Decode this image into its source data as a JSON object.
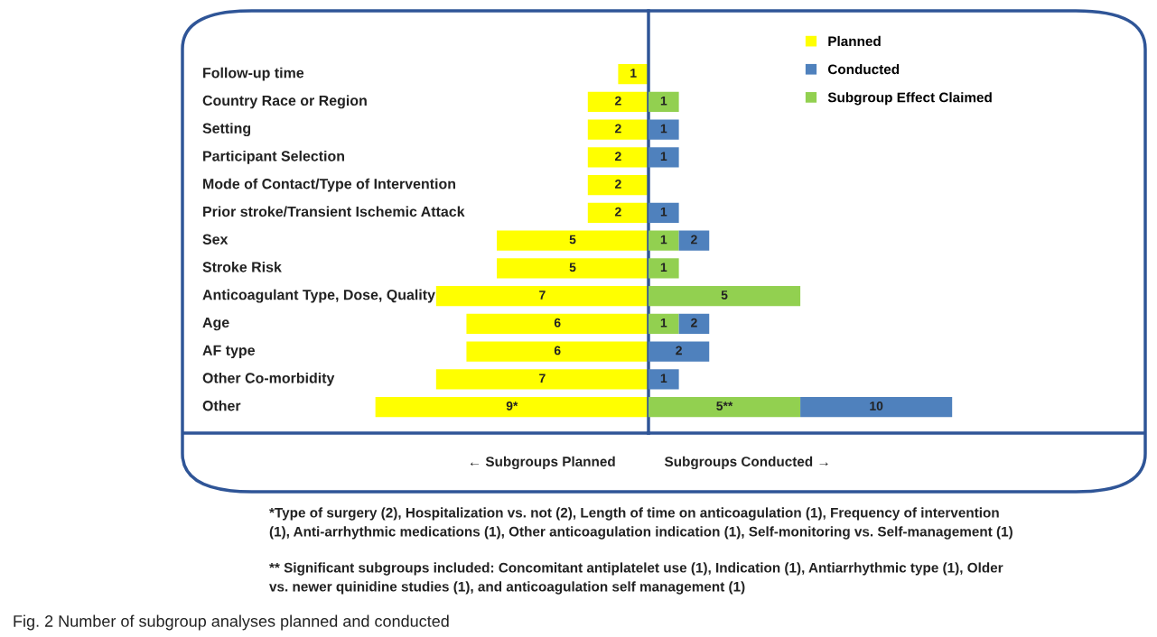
{
  "chart_data": [
    {
      "type": "bar",
      "orientation": "horizontal",
      "xlabel": "← Subgroups Planned",
      "tick_labels": "y",
      "xlim": [
        15.3,
        0
      ],
      "categories": [
        "Follow-up time",
        "Country Race or Region",
        "Setting",
        "Participant Selection",
        "Mode of Contact/Type of Intervention",
        "Prior stroke/Transient Ischemic Attack",
        "Sex",
        "Stroke Risk",
        "Anticoagulant Type, Dose, Quality",
        "Age",
        "AF type",
        "Other Co-morbidity",
        "Other"
      ],
      "series": [
        {
          "name": "Planned",
          "color": "#ffff00",
          "values": [
            1,
            2,
            2,
            2,
            2,
            2,
            5,
            5,
            7,
            6,
            6,
            7,
            9
          ],
          "value_labels": [
            "1",
            "2",
            "2",
            "2",
            "2",
            "2",
            "5",
            "5",
            "7",
            "6",
            "6",
            "7",
            "9*"
          ]
        }
      ]
    },
    {
      "type": "bar",
      "orientation": "horizontal",
      "stacked": true,
      "legend": "top right",
      "xlabel": "Subgroups Conducted →",
      "tick_labels": false,
      "xlim": [
        0,
        16.3
      ],
      "categories": [
        null,
        null,
        null,
        null,
        null,
        null,
        null,
        null,
        null,
        null,
        null,
        null,
        null
      ],
      "series": [
        {
          "name": "Subgroup Effect Claimed",
          "color": "#92d050",
          "values": [
            null,
            1,
            null,
            null,
            null,
            null,
            1,
            1,
            5,
            1,
            null,
            null,
            5
          ],
          "value_labels": [
            null,
            "1",
            null,
            null,
            null,
            null,
            "1",
            "1",
            "5",
            "1",
            null,
            null,
            "5**"
          ]
        },
        {
          "name": "Conducted",
          "color": "#4f81bd",
          "values": [
            null,
            null,
            1,
            1,
            null,
            1,
            1,
            null,
            null,
            1,
            2,
            1,
            5
          ]
        }
      ],
      "totals": [
        null,
        null,
        "1",
        "1",
        null,
        "1",
        "2",
        null,
        null,
        "2",
        "2",
        "1",
        "10"
      ],
      "annotations": [
        "*Type of surgery (2), Hospitalization vs. not (2), Length of time on anticoagulation (1), Frequency of intervention\n(1), Anti-arrhythmic medications (1), Other anticoagulation indication (1), Self-monitoring vs. Self-management (1)",
        "** Significant subgroups included: Concomitant antiplatelet use (1), Indication (1), Antiarrhythmic type (1), Older\nvs. newer quinidine studies (1), and anticoagulation self management (1)",
        "Fig. 2 Number of subgroup analyses planned and conducted"
      ]
    }
  ]
}
